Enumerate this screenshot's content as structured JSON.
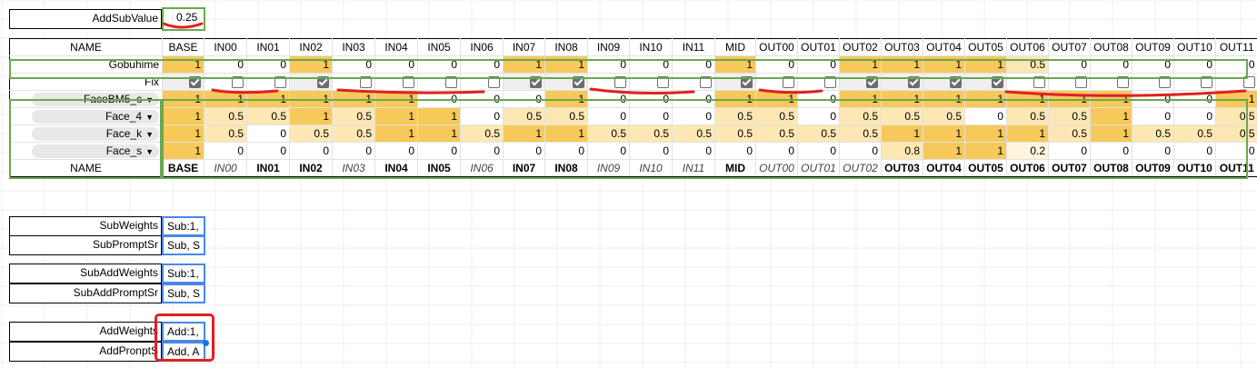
{
  "addsub": {
    "label": "AddSubValue",
    "value": "0.25"
  },
  "table": {
    "name_header": "NAME",
    "columns": [
      "BASE",
      "IN00",
      "IN01",
      "IN02",
      "IN03",
      "IN04",
      "IN05",
      "IN06",
      "IN07",
      "IN08",
      "IN09",
      "IN10",
      "IN11",
      "MID",
      "OUT00",
      "OUT01",
      "OUT02",
      "OUT03",
      "OUT04",
      "OUT05",
      "OUT06",
      "OUT07",
      "OUT08",
      "OUT09",
      "OUT10",
      "OUT11"
    ],
    "footer_styles": [
      "b",
      "i",
      "b",
      "b",
      "i",
      "b",
      "b",
      "i",
      "b",
      "b",
      "i",
      "i",
      "i",
      "b",
      "i",
      "i",
      "i",
      "b",
      "b",
      "b",
      "b",
      "b",
      "b",
      "b",
      "b",
      "b"
    ],
    "gobuhime": {
      "label": "Gobuhime",
      "values": [
        "1",
        "0",
        "0",
        "1",
        "0",
        "0",
        "0",
        "0",
        "1",
        "1",
        "0",
        "0",
        "0",
        "1",
        "0",
        "0",
        "1",
        "1",
        "1",
        "1",
        "0.5",
        "0",
        "0",
        "0",
        "0",
        "0"
      ]
    },
    "fix": {
      "label": "Fix",
      "checked": [
        true,
        false,
        false,
        true,
        false,
        false,
        false,
        false,
        true,
        true,
        false,
        false,
        false,
        true,
        false,
        false,
        true,
        true,
        true,
        true,
        false,
        false,
        false,
        false,
        false,
        false
      ]
    },
    "rows": [
      {
        "label": "FaceBM5_c",
        "values": [
          "1",
          "1",
          "1",
          "1",
          "1",
          "1",
          "0",
          "0",
          "0",
          "1",
          "0",
          "0",
          "0",
          "1",
          "1",
          "0",
          "1",
          "1",
          "1",
          "1",
          "1",
          "1",
          "1",
          "0",
          "0",
          "1"
        ]
      },
      {
        "label": "Face_4",
        "values": [
          "1",
          "0.5",
          "0.5",
          "1",
          "0.5",
          "1",
          "1",
          "0",
          "0.5",
          "0.5",
          "0",
          "0",
          "0",
          "0.5",
          "0.5",
          "0",
          "0.5",
          "0.5",
          "0.5",
          "0",
          "0.5",
          "0.5",
          "1",
          "0",
          "0",
          "0.5"
        ]
      },
      {
        "label": "Face_k",
        "values": [
          "1",
          "0.5",
          "0",
          "0.5",
          "0.5",
          "1",
          "1",
          "0.5",
          "1",
          "1",
          "0.5",
          "0.5",
          "0.5",
          "0.5",
          "0.5",
          "0.5",
          "0.5",
          "1",
          "1",
          "1",
          "1",
          "0.5",
          "1",
          "0.5",
          "0.5",
          "0.5"
        ]
      },
      {
        "label": "Face_s",
        "values": [
          "1",
          "0",
          "0",
          "0",
          "0",
          "0",
          "0",
          "0",
          "0",
          "0",
          "0",
          "0",
          "0",
          "0",
          "0",
          "0",
          "0",
          "0.8",
          "1",
          "1",
          "0.2",
          "0",
          "0",
          "0",
          "0",
          "0"
        ]
      }
    ]
  },
  "fields": [
    {
      "label": "SubWeights",
      "value": "Sub:1,"
    },
    {
      "label": "SubPromptSr",
      "value": "Sub, S"
    },
    {
      "label": "SubAddWeights",
      "value": "Sub:1,"
    },
    {
      "label": "SubAddPromptSr",
      "value": "Sub, S"
    },
    {
      "label": "AddWeights",
      "value": "Add:1,"
    },
    {
      "label": "AddPronptS",
      "value": "Add, A"
    }
  ],
  "colors": {
    "strong": "#f7c95a",
    "mid": "#fde8b4",
    "light": "#fef5dd",
    "group_border": "#6aa84f",
    "selection": "#4a86e8",
    "annotation": "#e02020"
  }
}
